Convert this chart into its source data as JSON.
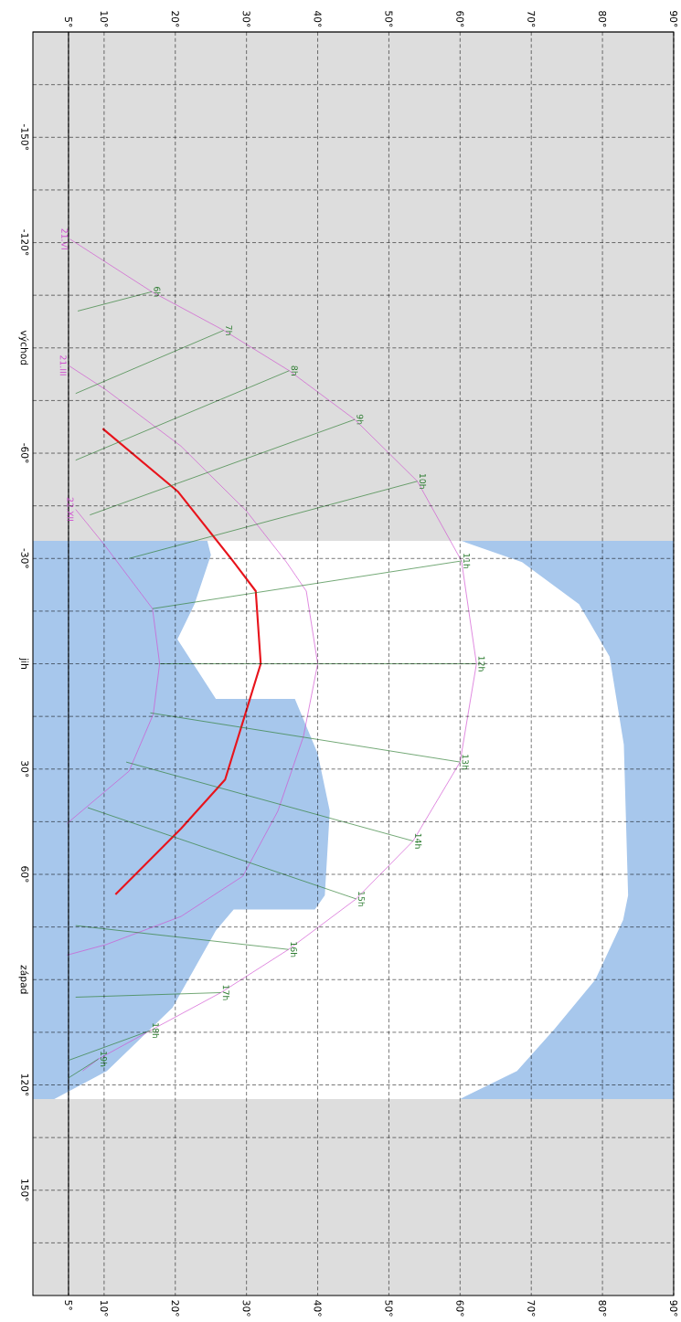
{
  "chart_data": {
    "type": "line",
    "xlim": [
      0,
      90
    ],
    "ylim": [
      180,
      -180
    ],
    "xticks": [
      {
        "value": 5,
        "label": "5°"
      },
      {
        "value": 10,
        "label": "10°"
      },
      {
        "value": 20,
        "label": "20°"
      },
      {
        "value": 30,
        "label": "30°"
      },
      {
        "value": 40,
        "label": "40°"
      },
      {
        "value": 50,
        "label": "50°"
      },
      {
        "value": 60,
        "label": "60°"
      },
      {
        "value": 70,
        "label": "70°"
      },
      {
        "value": 80,
        "label": "80°"
      },
      {
        "value": 90,
        "label": "90°"
      }
    ],
    "x2lim": [
      0,
      90
    ],
    "x2ticks": [
      {
        "value": 5,
        "label": "5°"
      },
      {
        "value": 10,
        "label": "10°"
      },
      {
        "value": 20,
        "label": "20°"
      },
      {
        "value": 30,
        "label": "30°"
      },
      {
        "value": 40,
        "label": "40°"
      },
      {
        "value": 50,
        "label": "50°"
      },
      {
        "value": 60,
        "label": "60°"
      },
      {
        "value": 70,
        "label": "70°"
      },
      {
        "value": 80,
        "label": "80°"
      },
      {
        "value": 90,
        "label": "90°"
      }
    ],
    "yticks": [
      {
        "value": -165,
        "label": null
      },
      {
        "value": -150,
        "label": "-150°"
      },
      {
        "value": -135,
        "label": null
      },
      {
        "value": -120,
        "label": "-120°"
      },
      {
        "value": -105,
        "label": null
      },
      {
        "value": -90,
        "label": "východ"
      },
      {
        "value": -75,
        "label": null
      },
      {
        "value": -60,
        "label": "-60°"
      },
      {
        "value": -45,
        "label": null
      },
      {
        "value": -30,
        "label": "-30°"
      },
      {
        "value": -15,
        "label": null
      },
      {
        "value": 0,
        "label": "jih"
      },
      {
        "value": 15,
        "label": null
      },
      {
        "value": 30,
        "label": "30°"
      },
      {
        "value": 45,
        "label": null
      },
      {
        "value": 60,
        "label": "60°"
      },
      {
        "value": 75,
        "label": null
      },
      {
        "value": 90,
        "label": "západ"
      },
      {
        "value": 105,
        "label": null
      },
      {
        "value": 120,
        "label": "120°"
      },
      {
        "value": 135,
        "label": null
      },
      {
        "value": 150,
        "label": "150°"
      },
      {
        "value": 165,
        "label": null
      }
    ],
    "grid": true,
    "ref_lines": [
      {
        "axis": "x",
        "value": 5,
        "color": "#000000"
      }
    ],
    "bands": [
      {
        "axis": "y",
        "from": -180,
        "to": -35,
        "color": "#dddddd"
      },
      {
        "axis": "y",
        "from": 124,
        "to": 180,
        "color": "#dddddd"
      }
    ],
    "series": [
      {
        "type": "area",
        "color": "#a7c7ec",
        "x": [
          0,
          24.5,
          25,
          22.7,
          20.3,
          25.7,
          36.8,
          40,
          41.7,
          41,
          39.6,
          28.2,
          25.7,
          19.6,
          10.4,
          3,
          0
        ],
        "values": [
          -35,
          -35,
          -31,
          -17,
          -7,
          10,
          10,
          25.6,
          42,
          66,
          70,
          70,
          76,
          98,
          116,
          124,
          124
        ]
      },
      {
        "type": "area",
        "color": "#a7c7ec",
        "x": [
          60.2,
          68.7,
          76.7,
          81,
          83,
          83.6,
          82.9,
          79,
          73.3,
          68,
          60,
          90,
          90
        ],
        "values": [
          -35,
          -29,
          -17,
          -2,
          23,
          66,
          73,
          90,
          104,
          116,
          124,
          124,
          -35
        ]
      },
      {
        "name": "21.VI",
        "color": "#d050d0",
        "x": [
          5.2,
          16.7,
          26.8,
          36,
          45.2,
          54,
          60.2,
          62.3,
          60,
          53.4,
          45.4,
          35.9,
          26.4,
          16.5,
          9.2,
          7
        ],
        "values": [
          -121,
          -106,
          -95,
          -83.5,
          -69.6,
          -52,
          -29.3,
          0,
          28,
          50.5,
          67,
          81.4,
          93.7,
          104.5,
          112.6,
          116
        ]
      },
      {
        "name": "21.III",
        "color": "#d050d0",
        "x": [
          5,
          10.3,
          20.8,
          30,
          35.6,
          38.4,
          40,
          38,
          34.4,
          29.5,
          20.8,
          10.3,
          4.8
        ],
        "values": [
          -85,
          -78,
          -62,
          -43.5,
          -29,
          -20.7,
          0,
          20.7,
          42,
          60.5,
          72,
          80,
          83
        ]
      },
      {
        "name": "22.XII",
        "color": "#d050d0",
        "x": [
          6,
          10,
          16.8,
          17.8,
          16.9,
          13.5,
          4.8
        ],
        "values": [
          -44,
          -34,
          -15.7,
          0,
          14.4,
          30.6,
          45.5
        ]
      },
      {
        "color": "#e8141c",
        "x": [
          9.8,
          20.4,
          28.2,
          31.3,
          32,
          27,
          20.8,
          11.6
        ],
        "values": [
          -67,
          -49,
          -29,
          -20.7,
          0,
          33,
          47,
          65.7
        ]
      },
      {
        "name": "6h",
        "color": "#2e7d32",
        "x": [
          16.7,
          6.3
        ],
        "values": [
          -106,
          -100.5
        ]
      },
      {
        "name": "7h",
        "color": "#2e7d32",
        "x": [
          26.8,
          6
        ],
        "values": [
          -95,
          -77
        ]
      },
      {
        "name": "8h",
        "color": "#2e7d32",
        "x": [
          36,
          6
        ],
        "values": [
          -83.5,
          -58
        ]
      },
      {
        "name": "9h",
        "color": "#2e7d32",
        "x": [
          45.2,
          8
        ],
        "values": [
          -69.6,
          -42.4
        ]
      },
      {
        "name": "10h",
        "color": "#2e7d32",
        "x": [
          54,
          13.5
        ],
        "values": [
          -52,
          -30
        ]
      },
      {
        "name": "11h",
        "color": "#2e7d32",
        "x": [
          60.2,
          16.8
        ],
        "values": [
          -29.3,
          -15.7
        ]
      },
      {
        "name": "12h",
        "color": "#2e7d32",
        "x": [
          62.3,
          17.8
        ],
        "values": [
          0,
          0
        ]
      },
      {
        "name": "13h",
        "color": "#2e7d32",
        "x": [
          60,
          16.5
        ],
        "values": [
          28,
          14
        ]
      },
      {
        "name": "14h",
        "color": "#2e7d32",
        "x": [
          53.4,
          13.1
        ],
        "values": [
          50.5,
          28
        ]
      },
      {
        "name": "15h",
        "color": "#2e7d32",
        "x": [
          45.4,
          7.7
        ],
        "values": [
          67,
          41
        ]
      },
      {
        "name": "16h",
        "color": "#2e7d32",
        "x": [
          35.9,
          6
        ],
        "values": [
          81.4,
          74.6
        ]
      },
      {
        "name": "17h",
        "color": "#2e7d32",
        "x": [
          26.4,
          6
        ],
        "values": [
          93.7,
          95
        ]
      },
      {
        "name": "18h",
        "color": "#2e7d32",
        "x": [
          16.5,
          5
        ],
        "values": [
          104.5,
          113
        ]
      },
      {
        "name": "19h",
        "color": "#2e7d32",
        "x": [
          9.2,
          5
        ],
        "values": [
          112.6,
          118
        ]
      }
    ]
  }
}
